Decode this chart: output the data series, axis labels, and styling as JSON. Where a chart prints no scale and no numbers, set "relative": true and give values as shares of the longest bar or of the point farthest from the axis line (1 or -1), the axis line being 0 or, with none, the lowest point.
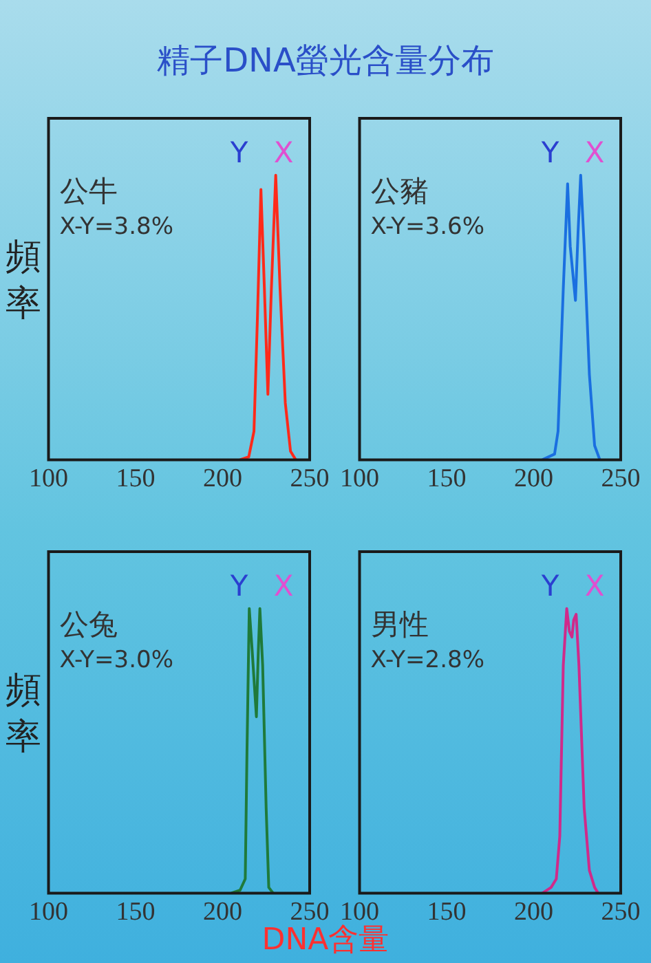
{
  "chart_data": [
    {
      "type": "line",
      "title": "精子DNA螢光含量分布",
      "ylabel": "頻率",
      "relative": true,
      "xlim": [
        100,
        250
      ],
      "xticks": [
        100,
        150,
        200,
        250
      ],
      "grid": false,
      "legend": false,
      "marker": "none",
      "tick_labels": "x",
      "annotations": [
        "公牛",
        "X-Y=3.8%",
        "Y",
        "X"
      ],
      "series": [
        {
          "color": "#ff2a1a",
          "x": [
            210,
            215,
            218,
            220,
            222,
            224,
            226,
            228,
            230.5,
            233,
            236,
            239,
            242
          ],
          "values": [
            0,
            0.01,
            0.1,
            0.5,
            0.95,
            0.6,
            0.23,
            0.6,
            1,
            0.6,
            0.2,
            0.03,
            0
          ]
        }
      ]
    },
    {
      "type": "line",
      "relative": true,
      "xlim": [
        100,
        250
      ],
      "xticks": [
        100,
        150,
        200,
        250
      ],
      "grid": false,
      "legend": false,
      "marker": "none",
      "tick_labels": "x",
      "annotations": [
        "公豬",
        "X-Y=3.6%",
        "Y",
        "X"
      ],
      "series": [
        {
          "color": "#1a6fe0",
          "x": [
            205,
            212,
            214,
            217,
            219.5,
            221,
            224,
            225.5,
            227,
            229,
            232,
            235,
            238
          ],
          "values": [
            0,
            0.02,
            0.1,
            0.6,
            0.97,
            0.75,
            0.56,
            0.8,
            1,
            0.75,
            0.3,
            0.05,
            0
          ]
        }
      ]
    },
    {
      "type": "line",
      "ylabel": "頻率",
      "relative": true,
      "xlim": [
        100,
        250
      ],
      "xticks": [
        100,
        150,
        200,
        250
      ],
      "grid": false,
      "legend": false,
      "marker": "none",
      "tick_labels": "x",
      "annotations": [
        "公兔",
        "X-Y=3.0%",
        "Y",
        "X"
      ],
      "series": [
        {
          "color": "#1f7a3a",
          "x": [
            205,
            210,
            213,
            214,
            215.3,
            217,
            219.4,
            220.5,
            221.4,
            223,
            225,
            226.5,
            229
          ],
          "values": [
            0,
            0.01,
            0.05,
            0.5,
            1,
            0.85,
            0.62,
            0.85,
            1,
            0.8,
            0.3,
            0.02,
            0
          ]
        }
      ]
    },
    {
      "type": "line",
      "xlabel": "DNA含量",
      "relative": true,
      "xlim": [
        100,
        250
      ],
      "xticks": [
        100,
        150,
        200,
        250
      ],
      "grid": false,
      "legend": false,
      "marker": "none",
      "tick_labels": "x",
      "annotations": [
        "男性",
        "X-Y=2.8%",
        "Y",
        "X"
      ],
      "series": [
        {
          "color": "#d02a8a",
          "x": [
            205,
            210,
            213,
            215,
            217,
            219,
            220.5,
            222,
            223,
            224.4,
            226,
            229,
            232,
            235,
            237
          ],
          "values": [
            0,
            0.02,
            0.05,
            0.2,
            0.8,
            1,
            0.92,
            0.9,
            0.96,
            0.98,
            0.8,
            0.3,
            0.08,
            0.02,
            0
          ]
        }
      ]
    }
  ]
}
